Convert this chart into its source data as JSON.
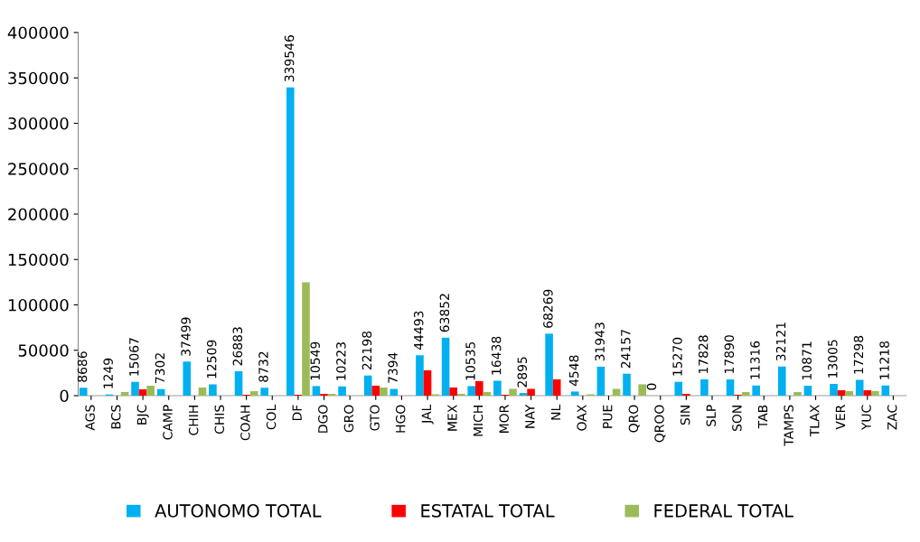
{
  "chart_data": {
    "type": "bar",
    "categories": [
      "AGS",
      "BCS",
      "BJC",
      "CAMP",
      "CHIH",
      "CHIS",
      "COAH",
      "COL",
      "DF",
      "DGO",
      "GRO",
      "GTO",
      "HGO",
      "JAL",
      "MEX",
      "MICH",
      "MOR",
      "NAY",
      "NL",
      "OAX",
      "PUE",
      "QRO",
      "QROO",
      "SIN",
      "SLP",
      "SON",
      "TAB",
      "TAMPS",
      "TLAX",
      "VER",
      "YUC",
      "ZAC"
    ],
    "series": [
      {
        "name": "AUTONOMO TOTAL",
        "color": "#00b0f0",
        "values": [
          8686,
          1249,
          15067,
          7302,
          37499,
          12509,
          26883,
          8732,
          339546,
          10549,
          10223,
          22198,
          7394,
          44493,
          63852,
          10535,
          16438,
          2895,
          68269,
          4548,
          31943,
          24157,
          0,
          15270,
          17828,
          17890,
          11316,
          32121,
          10871,
          13005,
          17298,
          11218
        ],
        "data_labels": true
      },
      {
        "name": "ESTATAL TOTAL",
        "color": "#ff0000",
        "values": [
          0,
          0,
          7000,
          0,
          0,
          0,
          1000,
          0,
          1000,
          2000,
          0,
          11000,
          0,
          28000,
          9000,
          16000,
          1000,
          7500,
          18000,
          0,
          0,
          0,
          0,
          2000,
          0,
          1000,
          0,
          0,
          0,
          6000,
          6000,
          0
        ]
      },
      {
        "name": "FEDERAL TOTAL",
        "color": "#9bbb59",
        "values": [
          0,
          4000,
          11000,
          0,
          9000,
          0,
          5000,
          0,
          125000,
          2000,
          0,
          9000,
          0,
          1500,
          2000,
          4000,
          7500,
          0,
          0,
          1500,
          7500,
          12500,
          0,
          0,
          0,
          4000,
          0,
          4000,
          0,
          5000,
          5000,
          0
        ]
      }
    ],
    "ylim": [
      0,
      400000
    ],
    "yticks": [
      0,
      50000,
      100000,
      150000,
      200000,
      250000,
      300000,
      350000,
      400000
    ],
    "grid": false,
    "legend": "bottom"
  }
}
